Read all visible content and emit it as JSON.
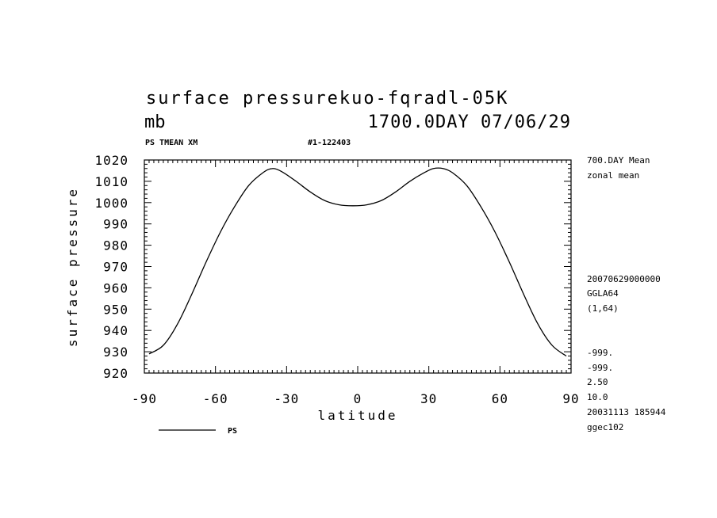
{
  "chart_data": {
    "type": "line",
    "title": "surface pressurekuo-fqradl-05K",
    "units_label": "mb",
    "time_label": "1700.0DAY 07/06/29",
    "variable_label": "PS TMEAN XM",
    "run_label": "#1-122403",
    "xlabel": "latitude",
    "ylabel": "surface pressure",
    "xlim": [
      -90,
      90
    ],
    "ylim": [
      920,
      1020
    ],
    "x_ticks": [
      "-90",
      "-60",
      "-30",
      "0",
      "30",
      "60",
      "90"
    ],
    "y_ticks": [
      "920",
      "930",
      "940",
      "950",
      "960",
      "970",
      "980",
      "990",
      "1000",
      "1010",
      "1020"
    ],
    "grid": false,
    "legend_position": "bottom-left",
    "series": [
      {
        "name": "PS",
        "color": "#000000",
        "x": [
          -88,
          -82,
          -76,
          -70,
          -64,
          -58,
          -52,
          -46,
          -40,
          -36,
          -32,
          -26,
          -20,
          -14,
          -8,
          -2,
          4,
          10,
          16,
          22,
          28,
          32,
          36,
          40,
          46,
          52,
          58,
          64,
          70,
          76,
          82,
          88
        ],
        "y": [
          929,
          933,
          943,
          957,
          972,
          986,
          998,
          1008,
          1014,
          1016,
          1014.5,
          1010,
          1005,
          1001,
          999,
          998.5,
          999,
          1001,
          1005,
          1010,
          1014,
          1016,
          1016,
          1014,
          1008,
          998,
          986,
          972,
          957,
          943,
          933,
          928
        ]
      }
    ],
    "side_annotations": {
      "period": "700.DAY Mean",
      "operation": "zonal mean",
      "date": "20070629000000",
      "grid_name": "GGLA64",
      "grid_index": "(1,64)",
      "undef_1": "-999.",
      "undef_2": "-999.",
      "value_1": "2.50",
      "value_2": "10.0",
      "created": "20031113 185944",
      "host": "ggec102"
    }
  }
}
